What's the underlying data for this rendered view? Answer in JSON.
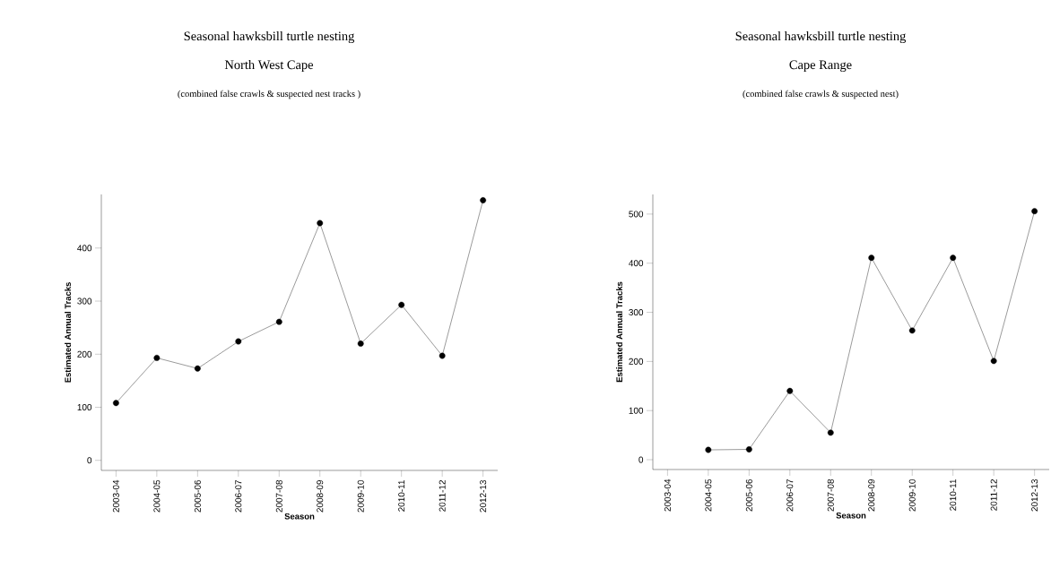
{
  "chart_data": [
    {
      "type": "line",
      "title": "Seasonal hawksbill turtle nesting",
      "subtitle": "North West Cape",
      "annotations": [
        "(combined false crawls & suspected nest tracks )"
      ],
      "xlabel": "Season",
      "ylabel": "Estimated Annual Tracks",
      "categories": [
        "2003-04",
        "2004-05",
        "2005-06",
        "2006-07",
        "2007-08",
        "2008-09",
        "2009-10",
        "2010-11",
        "2011-12",
        "2012-13"
      ],
      "series": [
        {
          "color": "#000000",
          "values": [
            108,
            193,
            173,
            224,
            261,
            447,
            220,
            293,
            197,
            490
          ]
        }
      ],
      "ylim": [
        -19,
        501
      ],
      "yticks": [
        0,
        100,
        200,
        300,
        400
      ],
      "marker": "circle",
      "line_style": "solid"
    },
    {
      "type": "line",
      "title": "Seasonal hawksbill turtle nesting",
      "subtitle": "Cape Range",
      "annotations": [
        "(combined false crawls & suspected nest)"
      ],
      "xlabel": "Season",
      "ylabel": "Estimated Annual Tracks",
      "categories": [
        "2003-04",
        "2004-05",
        "2005-06",
        "2006-07",
        "2007-08",
        "2008-09",
        "2009-10",
        "2010-11",
        "2011-12",
        "2012-13"
      ],
      "series": [
        {
          "color": "#000000",
          "values": [
            null,
            20,
            21,
            140,
            55,
            411,
            263,
            411,
            201,
            506
          ]
        }
      ],
      "ylim": [
        -20,
        540
      ],
      "yticks": [
        0,
        100,
        200,
        300,
        400,
        500
      ],
      "marker": "circle",
      "line_style": "solid"
    }
  ]
}
